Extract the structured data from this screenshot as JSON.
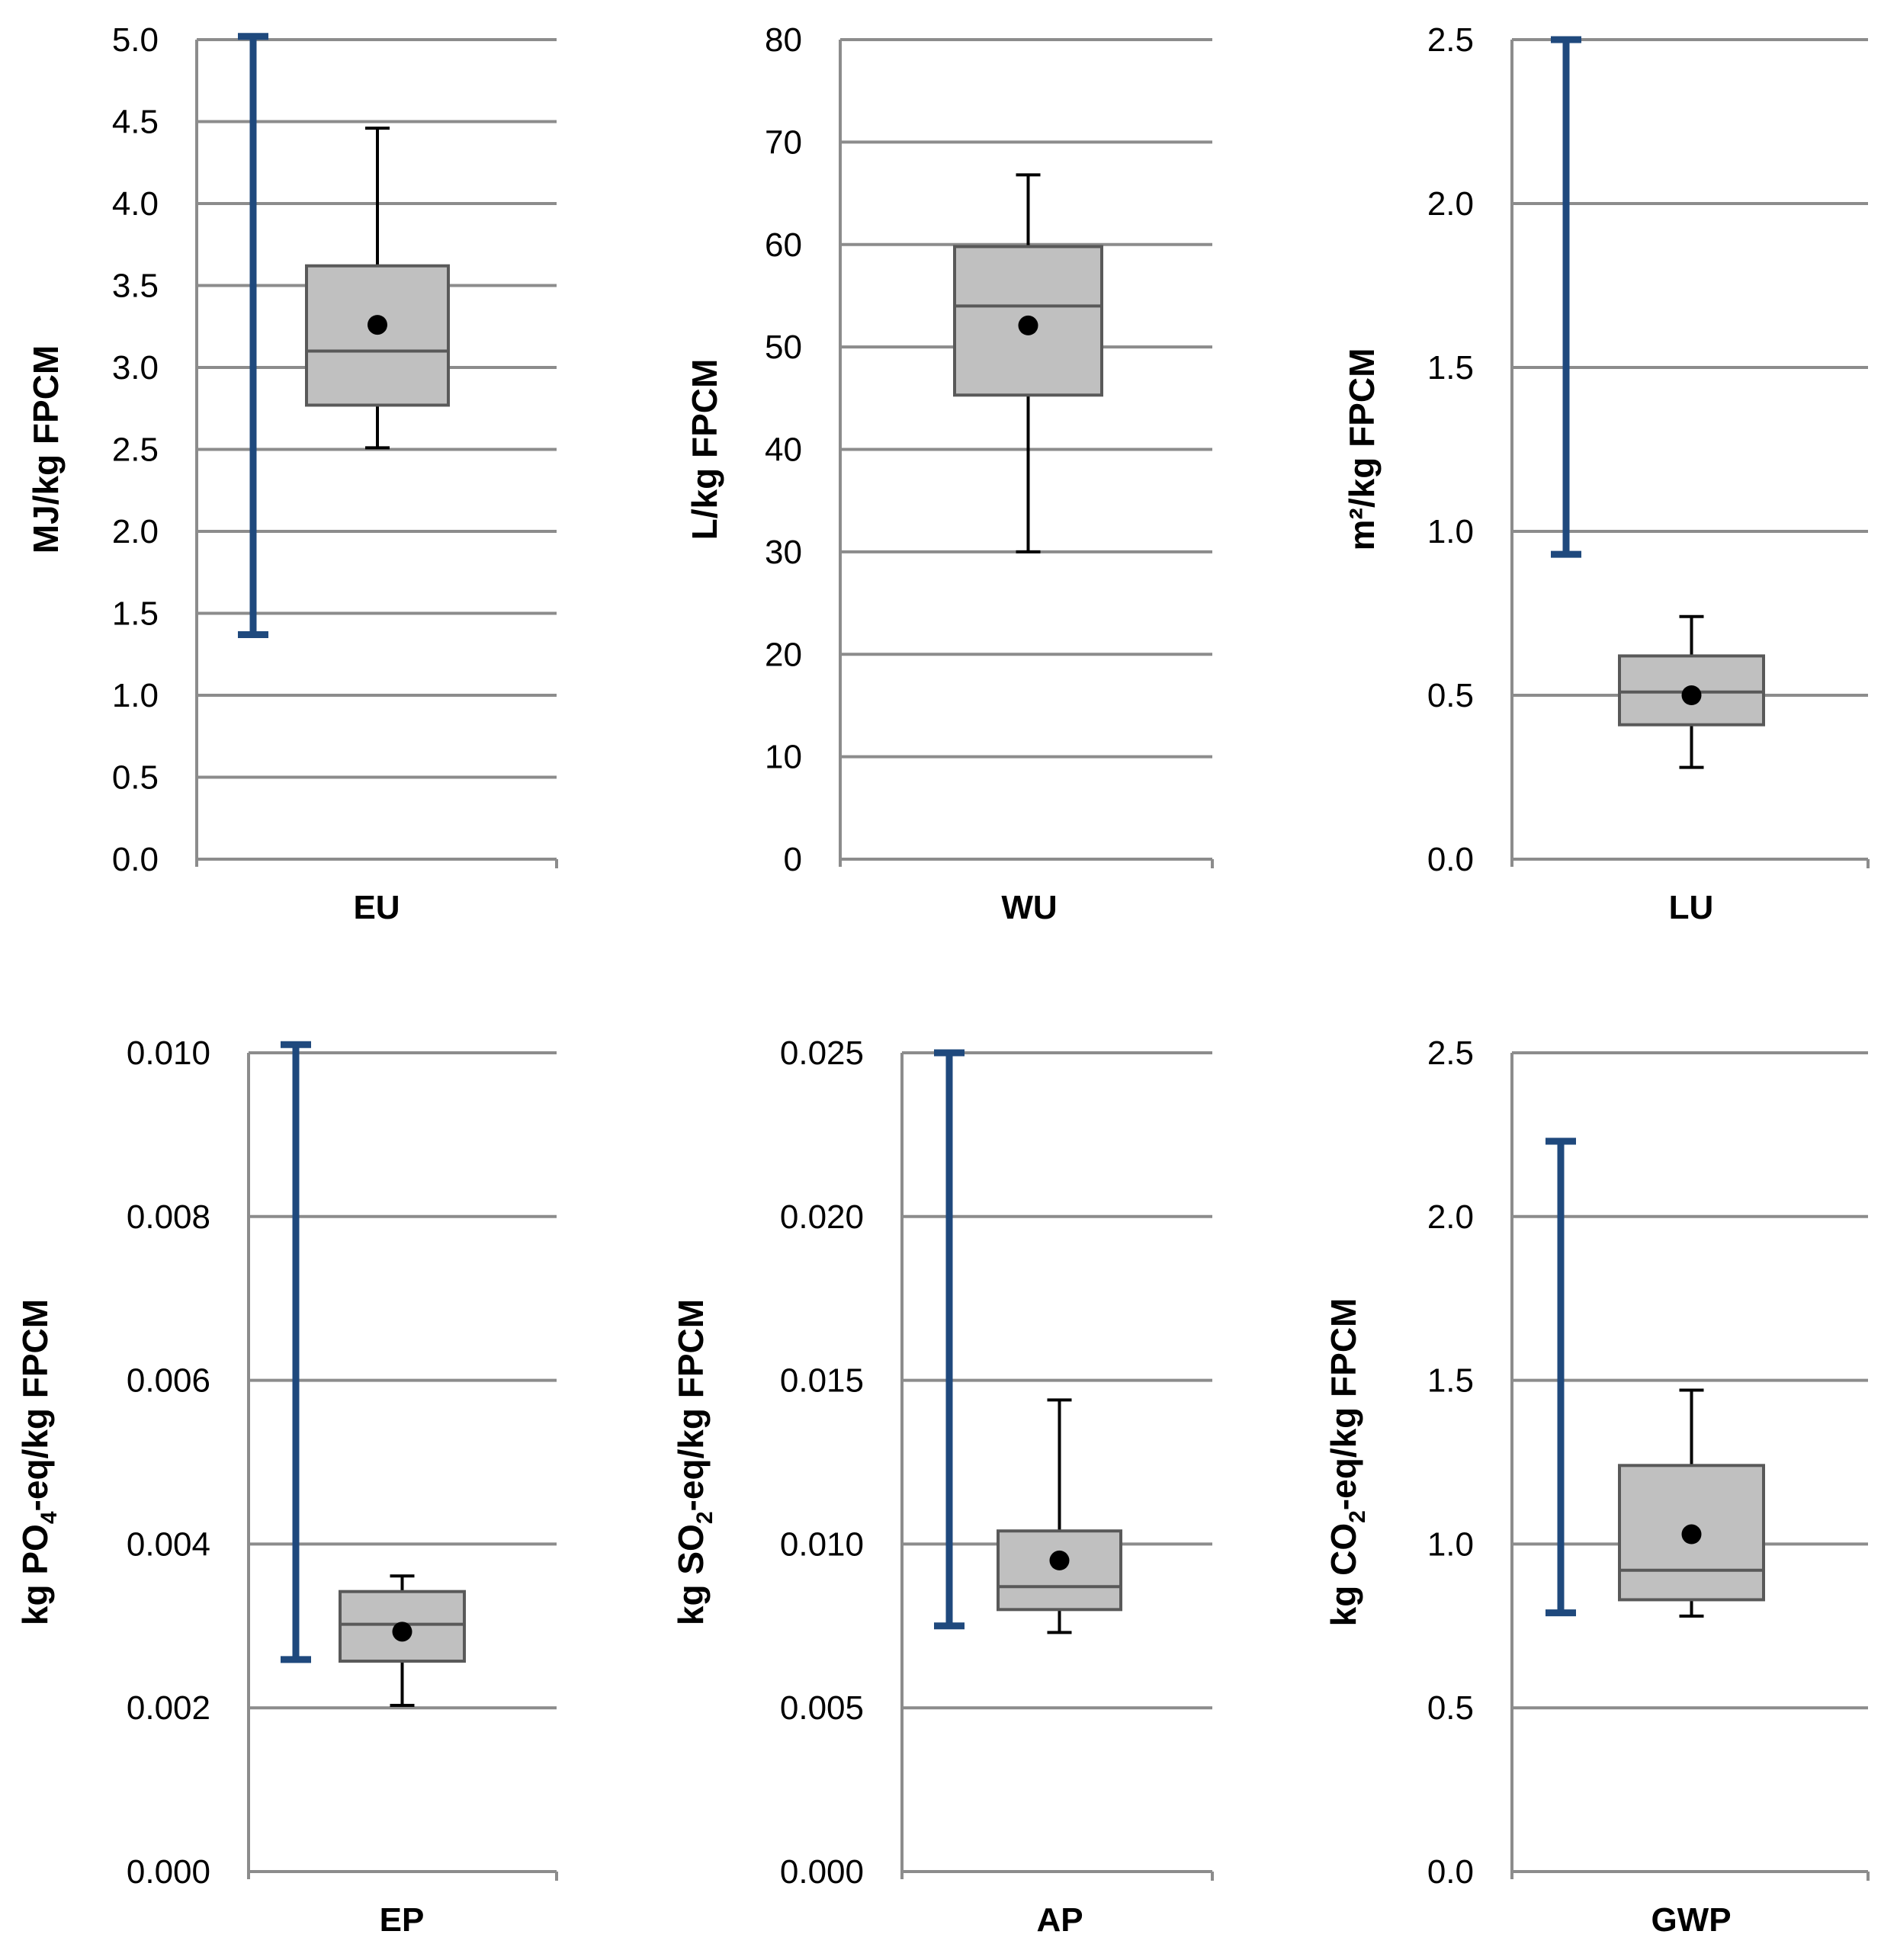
{
  "chart_data": [
    {
      "type": "box",
      "category": "EU",
      "ylabel": {
        "pre": "MJ/kg FPCM",
        "sub": "",
        "post": ""
      },
      "ylim": [
        0,
        5.0
      ],
      "ticks": [
        "0.0",
        "0.5",
        "1.0",
        "1.5",
        "2.0",
        "2.5",
        "3.0",
        "3.5",
        "4.0",
        "4.5",
        "5.0"
      ],
      "range_bar": {
        "min": 1.37,
        "max": 5.02
      },
      "box": {
        "whisker_low": 2.51,
        "q1": 2.77,
        "median": 3.1,
        "q3": 3.62,
        "whisker_high": 4.46,
        "mean": 3.26
      }
    },
    {
      "type": "box",
      "category": "WU",
      "ylabel": {
        "pre": "L/kg FPCM",
        "sub": "",
        "post": ""
      },
      "ylim": [
        0,
        80
      ],
      "ticks": [
        "0",
        "10",
        "20",
        "30",
        "40",
        "50",
        "60",
        "70",
        "80"
      ],
      "range_bar": null,
      "box": {
        "whisker_low": 30.0,
        "q1": 45.3,
        "median": 54.0,
        "q3": 59.8,
        "whisker_high": 66.8,
        "mean": 52.1
      }
    },
    {
      "type": "box",
      "category": "LU",
      "ylabel": {
        "pre": "m²/kg FPCM",
        "sub": "",
        "post": ""
      },
      "ylim": [
        0,
        2.5
      ],
      "ticks": [
        "0.0",
        "0.5",
        "1.0",
        "1.5",
        "2.0",
        "2.5"
      ],
      "range_bar": {
        "min": 0.93,
        "max": 2.5
      },
      "box": {
        "whisker_low": 0.28,
        "q1": 0.41,
        "median": 0.51,
        "q3": 0.62,
        "whisker_high": 0.74,
        "mean": 0.5
      }
    },
    {
      "type": "box",
      "category": "EP",
      "ylabel": {
        "pre": "kg PO",
        "sub": "4",
        "post": "-eq/kg FPCM"
      },
      "ylim": [
        0,
        0.01
      ],
      "ticks": [
        "0.000",
        "0.002",
        "0.004",
        "0.006",
        "0.008",
        "0.010"
      ],
      "range_bar": {
        "min": 0.00259,
        "max": 0.0101
      },
      "box": {
        "whisker_low": 0.00203,
        "q1": 0.00257,
        "median": 0.00302,
        "q3": 0.00342,
        "whisker_high": 0.00361,
        "mean": 0.00293
      }
    },
    {
      "type": "box",
      "category": "AP",
      "ylabel": {
        "pre": "kg SO",
        "sub": "2",
        "post": "-eq/kg FPCM"
      },
      "ylim": [
        0,
        0.025
      ],
      "ticks": [
        "0.000",
        "0.005",
        "0.010",
        "0.015",
        "0.020",
        "0.025"
      ],
      "range_bar": {
        "min": 0.0075,
        "max": 0.025
      },
      "box": {
        "whisker_low": 0.0073,
        "q1": 0.008,
        "median": 0.0087,
        "q3": 0.0104,
        "whisker_high": 0.0144,
        "mean": 0.0095
      }
    },
    {
      "type": "box",
      "category": "GWP",
      "ylabel": {
        "pre": "kg CO",
        "sub": "2",
        "post": "-eq/kg FPCM"
      },
      "ylim": [
        0,
        2.5
      ],
      "ticks": [
        "0.0",
        "0.5",
        "1.0",
        "1.5",
        "2.0",
        "2.5"
      ],
      "range_bar": {
        "min": 0.79,
        "max": 2.23
      },
      "box": {
        "whisker_low": 0.78,
        "q1": 0.83,
        "median": 0.92,
        "q3": 1.24,
        "whisker_high": 1.47,
        "mean": 1.03
      }
    }
  ],
  "colors": {
    "grid": "#8c8c8c",
    "range_bar": "#1f497d",
    "box_fill": "#c0c0c0",
    "box_stroke": "#595959",
    "whisker": "#000000",
    "mean_marker": "#000000"
  }
}
